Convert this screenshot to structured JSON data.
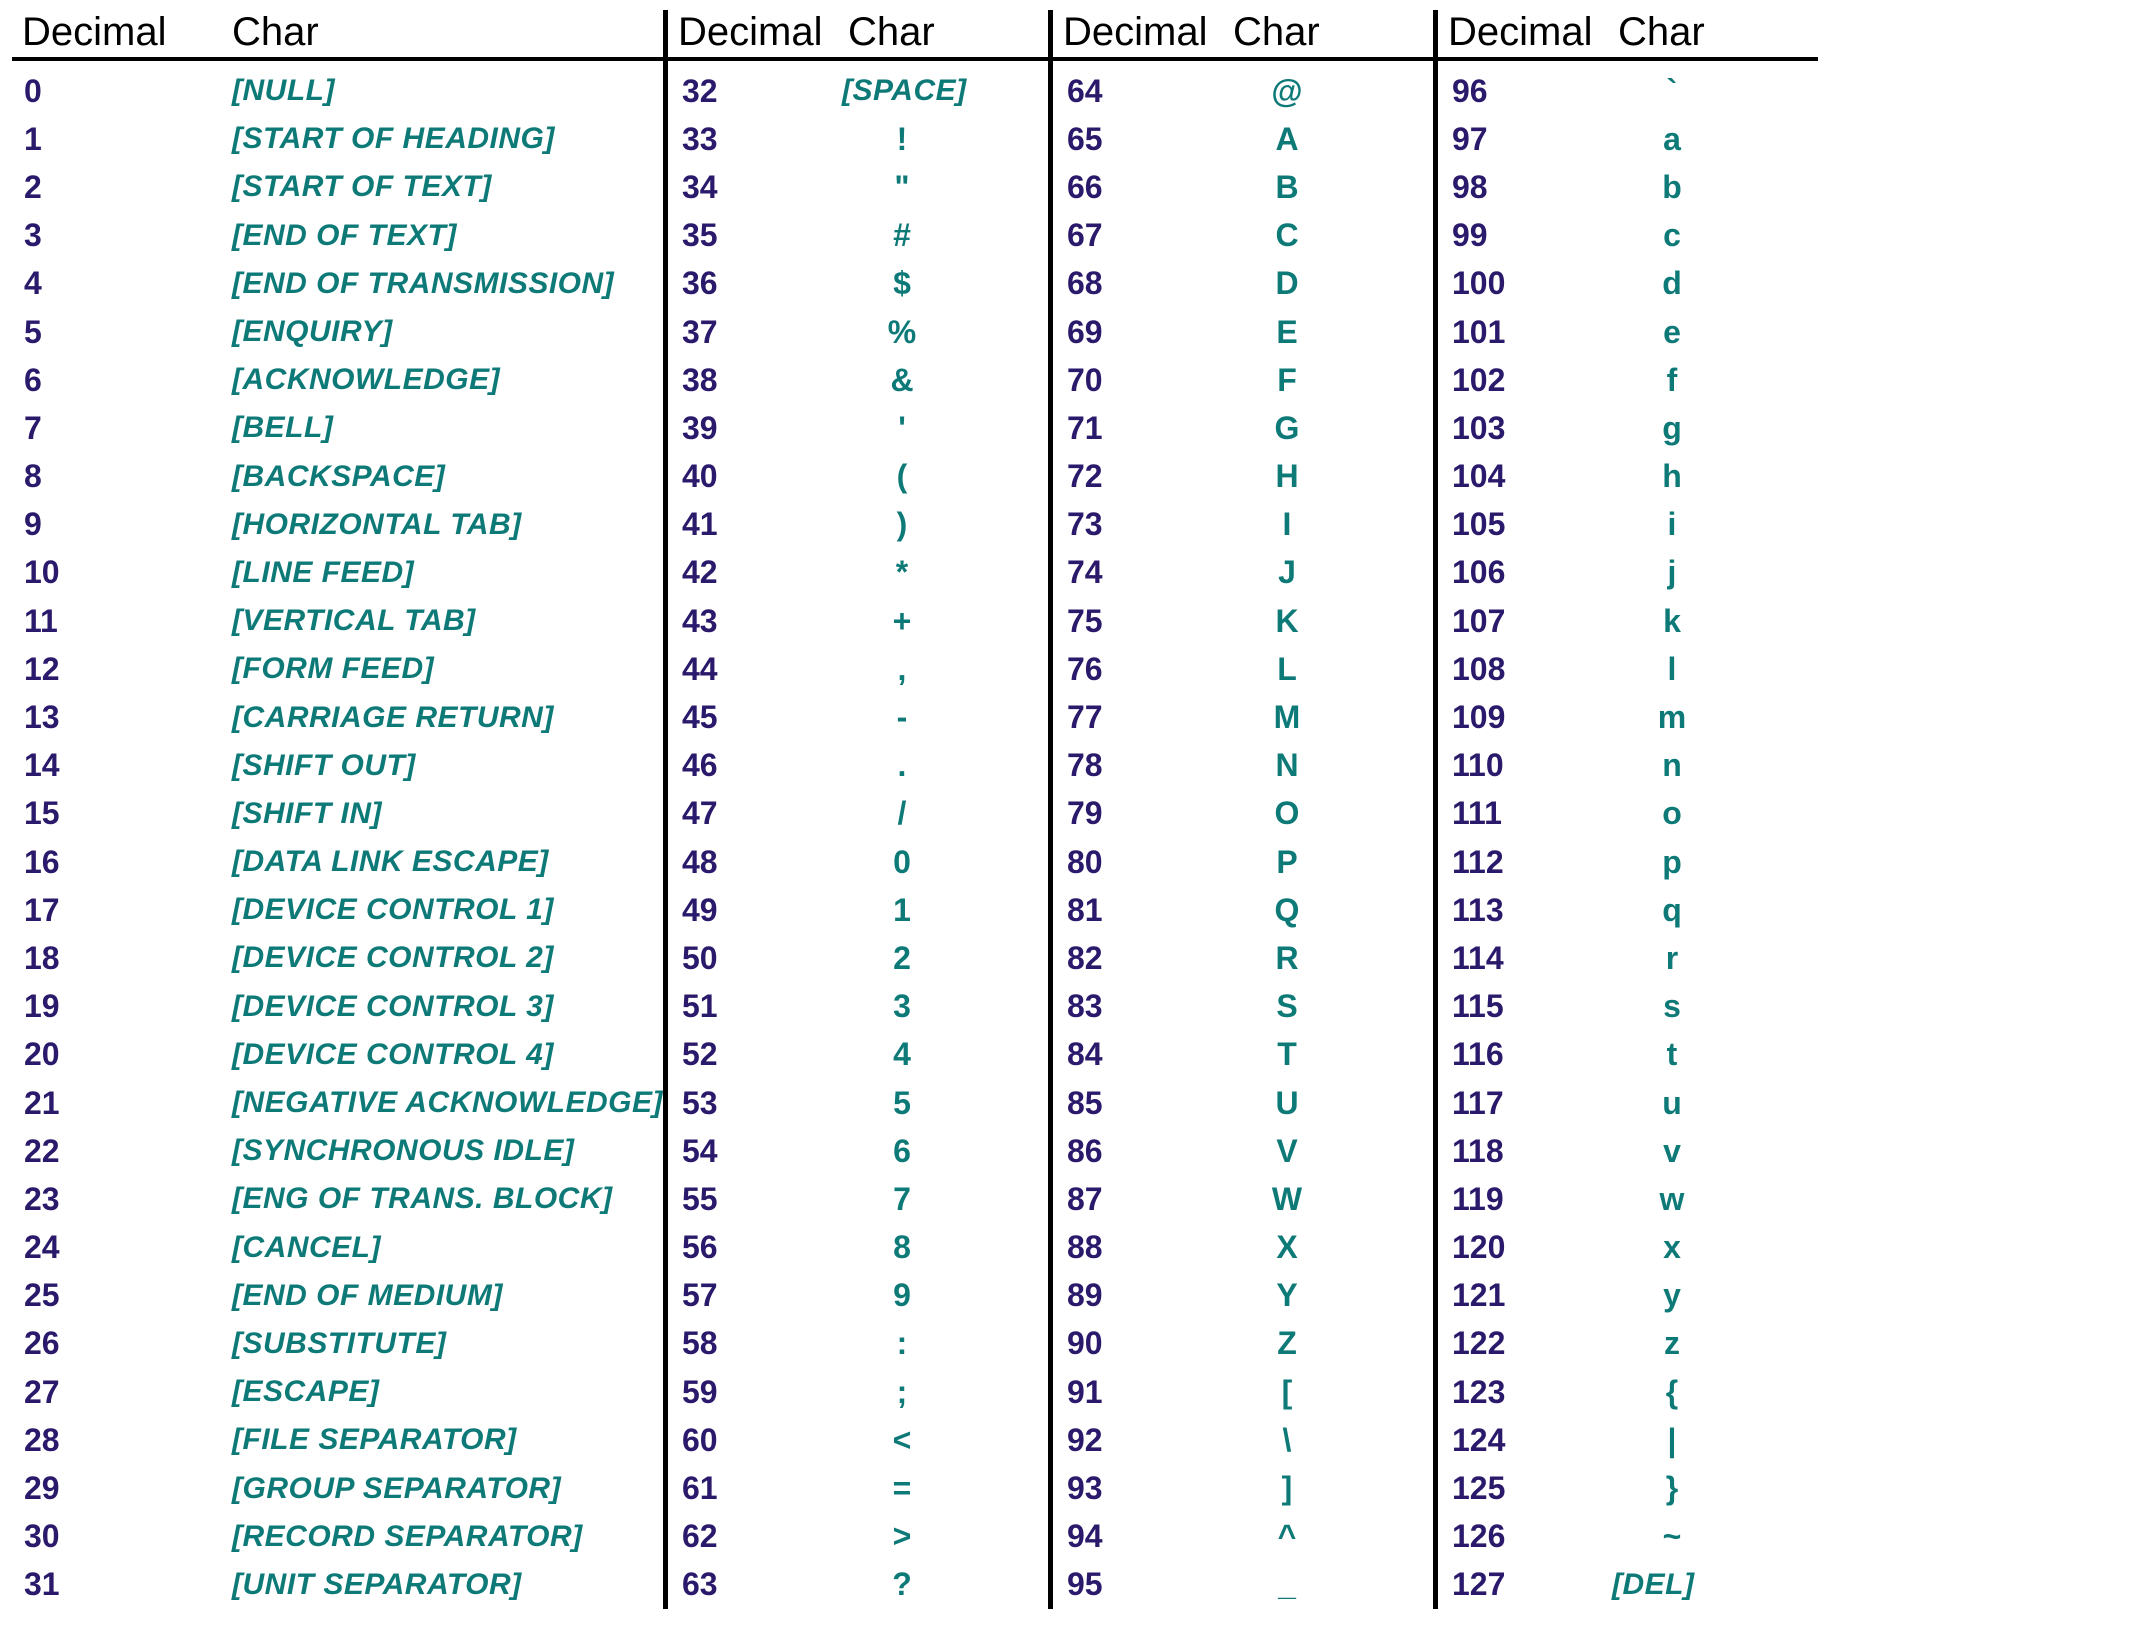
{
  "table": {
    "header_decimal": "Decimal",
    "header_char": "Char",
    "header_color": "#000000",
    "border_color": "#000000",
    "background_color": "#ffffff",
    "decimal_color": "#2b1a6b",
    "char_color": "#0e7a78",
    "header_fontsize": 40,
    "cell_fontsize": 32,
    "font_family": "Verdana, Geneva, Tahoma, sans-serif",
    "columns": [
      {
        "rows": [
          {
            "dec": "0",
            "char": "[NULL]",
            "special": true
          },
          {
            "dec": "1",
            "char": "[START OF HEADING]",
            "special": true
          },
          {
            "dec": "2",
            "char": "[START OF TEXT]",
            "special": true
          },
          {
            "dec": "3",
            "char": "[END OF TEXT]",
            "special": true
          },
          {
            "dec": "4",
            "char": "[END OF TRANSMISSION]",
            "special": true
          },
          {
            "dec": "5",
            "char": "[ENQUIRY]",
            "special": true
          },
          {
            "dec": "6",
            "char": "[ACKNOWLEDGE]",
            "special": true
          },
          {
            "dec": "7",
            "char": "[BELL]",
            "special": true
          },
          {
            "dec": "8",
            "char": "[BACKSPACE]",
            "special": true
          },
          {
            "dec": "9",
            "char": "[HORIZONTAL TAB]",
            "special": true
          },
          {
            "dec": "10",
            "char": "[LINE FEED]",
            "special": true
          },
          {
            "dec": "11",
            "char": "[VERTICAL TAB]",
            "special": true
          },
          {
            "dec": "12",
            "char": "[FORM FEED]",
            "special": true
          },
          {
            "dec": "13",
            "char": "[CARRIAGE RETURN]",
            "special": true
          },
          {
            "dec": "14",
            "char": "[SHIFT OUT]",
            "special": true
          },
          {
            "dec": "15",
            "char": "[SHIFT IN]",
            "special": true
          },
          {
            "dec": "16",
            "char": "[DATA LINK ESCAPE]",
            "special": true
          },
          {
            "dec": "17",
            "char": "[DEVICE CONTROL 1]",
            "special": true
          },
          {
            "dec": "18",
            "char": "[DEVICE CONTROL 2]",
            "special": true
          },
          {
            "dec": "19",
            "char": "[DEVICE CONTROL 3]",
            "special": true
          },
          {
            "dec": "20",
            "char": "[DEVICE CONTROL 4]",
            "special": true
          },
          {
            "dec": "21",
            "char": "[NEGATIVE ACKNOWLEDGE]",
            "special": true
          },
          {
            "dec": "22",
            "char": "[SYNCHRONOUS IDLE]",
            "special": true
          },
          {
            "dec": "23",
            "char": "[ENG OF TRANS. BLOCK]",
            "special": true
          },
          {
            "dec": "24",
            "char": "[CANCEL]",
            "special": true
          },
          {
            "dec": "25",
            "char": "[END OF MEDIUM]",
            "special": true
          },
          {
            "dec": "26",
            "char": "[SUBSTITUTE]",
            "special": true
          },
          {
            "dec": "27",
            "char": "[ESCAPE]",
            "special": true
          },
          {
            "dec": "28",
            "char": "[FILE SEPARATOR]",
            "special": true
          },
          {
            "dec": "29",
            "char": "[GROUP SEPARATOR]",
            "special": true
          },
          {
            "dec": "30",
            "char": "[RECORD SEPARATOR]",
            "special": true
          },
          {
            "dec": "31",
            "char": "[UNIT SEPARATOR]",
            "special": true
          }
        ]
      },
      {
        "rows": [
          {
            "dec": "32",
            "char": "[SPACE]",
            "special": true
          },
          {
            "dec": "33",
            "char": "!"
          },
          {
            "dec": "34",
            "char": "\""
          },
          {
            "dec": "35",
            "char": "#"
          },
          {
            "dec": "36",
            "char": "$"
          },
          {
            "dec": "37",
            "char": "%"
          },
          {
            "dec": "38",
            "char": "&"
          },
          {
            "dec": "39",
            "char": "'"
          },
          {
            "dec": "40",
            "char": "("
          },
          {
            "dec": "41",
            "char": ")"
          },
          {
            "dec": "42",
            "char": "*"
          },
          {
            "dec": "43",
            "char": "+"
          },
          {
            "dec": "44",
            "char": ","
          },
          {
            "dec": "45",
            "char": "-"
          },
          {
            "dec": "46",
            "char": "."
          },
          {
            "dec": "47",
            "char": "/"
          },
          {
            "dec": "48",
            "char": "0"
          },
          {
            "dec": "49",
            "char": "1"
          },
          {
            "dec": "50",
            "char": "2"
          },
          {
            "dec": "51",
            "char": "3"
          },
          {
            "dec": "52",
            "char": "4"
          },
          {
            "dec": "53",
            "char": "5"
          },
          {
            "dec": "54",
            "char": "6"
          },
          {
            "dec": "55",
            "char": "7"
          },
          {
            "dec": "56",
            "char": "8"
          },
          {
            "dec": "57",
            "char": "9"
          },
          {
            "dec": "58",
            "char": ":"
          },
          {
            "dec": "59",
            "char": ";"
          },
          {
            "dec": "60",
            "char": "<"
          },
          {
            "dec": "61",
            "char": "="
          },
          {
            "dec": "62",
            "char": ">"
          },
          {
            "dec": "63",
            "char": "?"
          }
        ]
      },
      {
        "rows": [
          {
            "dec": "64",
            "char": "@"
          },
          {
            "dec": "65",
            "char": "A"
          },
          {
            "dec": "66",
            "char": "B"
          },
          {
            "dec": "67",
            "char": "C"
          },
          {
            "dec": "68",
            "char": "D"
          },
          {
            "dec": "69",
            "char": "E"
          },
          {
            "dec": "70",
            "char": "F"
          },
          {
            "dec": "71",
            "char": "G"
          },
          {
            "dec": "72",
            "char": "H"
          },
          {
            "dec": "73",
            "char": "I"
          },
          {
            "dec": "74",
            "char": "J"
          },
          {
            "dec": "75",
            "char": "K"
          },
          {
            "dec": "76",
            "char": "L"
          },
          {
            "dec": "77",
            "char": "M"
          },
          {
            "dec": "78",
            "char": "N"
          },
          {
            "dec": "79",
            "char": "O"
          },
          {
            "dec": "80",
            "char": "P"
          },
          {
            "dec": "81",
            "char": "Q"
          },
          {
            "dec": "82",
            "char": "R"
          },
          {
            "dec": "83",
            "char": "S"
          },
          {
            "dec": "84",
            "char": "T"
          },
          {
            "dec": "85",
            "char": "U"
          },
          {
            "dec": "86",
            "char": "V"
          },
          {
            "dec": "87",
            "char": "W"
          },
          {
            "dec": "88",
            "char": "X"
          },
          {
            "dec": "89",
            "char": "Y"
          },
          {
            "dec": "90",
            "char": "Z"
          },
          {
            "dec": "91",
            "char": "["
          },
          {
            "dec": "92",
            "char": "\\"
          },
          {
            "dec": "93",
            "char": "]"
          },
          {
            "dec": "94",
            "char": "^"
          },
          {
            "dec": "95",
            "char": "_"
          }
        ]
      },
      {
        "rows": [
          {
            "dec": "96",
            "char": "`"
          },
          {
            "dec": "97",
            "char": "a"
          },
          {
            "dec": "98",
            "char": "b"
          },
          {
            "dec": "99",
            "char": "c"
          },
          {
            "dec": "100",
            "char": "d"
          },
          {
            "dec": "101",
            "char": "e"
          },
          {
            "dec": "102",
            "char": "f"
          },
          {
            "dec": "103",
            "char": "g"
          },
          {
            "dec": "104",
            "char": "h"
          },
          {
            "dec": "105",
            "char": "i"
          },
          {
            "dec": "106",
            "char": "j"
          },
          {
            "dec": "107",
            "char": "k"
          },
          {
            "dec": "108",
            "char": "l"
          },
          {
            "dec": "109",
            "char": "m"
          },
          {
            "dec": "110",
            "char": "n"
          },
          {
            "dec": "111",
            "char": "o"
          },
          {
            "dec": "112",
            "char": "p"
          },
          {
            "dec": "113",
            "char": "q"
          },
          {
            "dec": "114",
            "char": "r"
          },
          {
            "dec": "115",
            "char": "s"
          },
          {
            "dec": "116",
            "char": "t"
          },
          {
            "dec": "117",
            "char": "u"
          },
          {
            "dec": "118",
            "char": "v"
          },
          {
            "dec": "119",
            "char": "w"
          },
          {
            "dec": "120",
            "char": "x"
          },
          {
            "dec": "121",
            "char": "y"
          },
          {
            "dec": "122",
            "char": "z"
          },
          {
            "dec": "123",
            "char": "{"
          },
          {
            "dec": "124",
            "char": "|"
          },
          {
            "dec": "125",
            "char": "}"
          },
          {
            "dec": "126",
            "char": "~"
          },
          {
            "dec": "127",
            "char": "[DEL]",
            "special": true
          }
        ]
      }
    ]
  }
}
